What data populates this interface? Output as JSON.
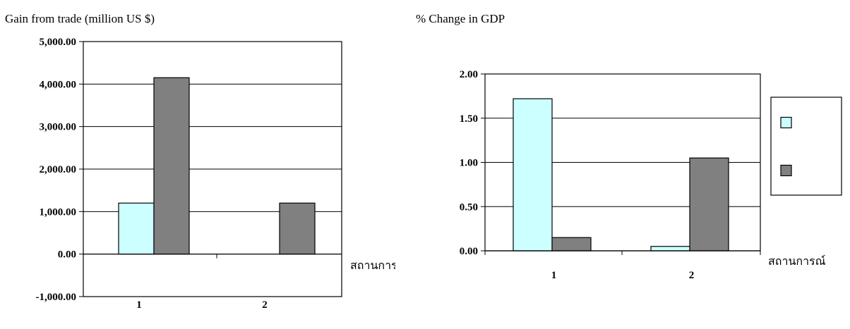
{
  "chart_data": [
    {
      "type": "bar",
      "title": "Gain from trade (million US $)",
      "xlabel": "สถานการณ์",
      "categories": [
        "1",
        "2"
      ],
      "series": [
        {
          "color": "#ccffff",
          "values": [
            1200,
            0
          ]
        },
        {
          "color": "#808080",
          "values": [
            4150,
            1200
          ]
        }
      ],
      "ylim": [
        -1000,
        5000
      ],
      "yticks": [
        "-1,000.00",
        "0.00",
        "1,000.00",
        "2,000.00",
        "3,000.00",
        "4,000.00",
        "5,000.00"
      ],
      "grid": true,
      "legend": "none"
    },
    {
      "type": "bar",
      "title": "% Change in GDP",
      "xlabel": "สถานการณ์",
      "categories": [
        "1",
        "2"
      ],
      "series": [
        {
          "color": "#ccffff",
          "values": [
            1.72,
            0.05
          ]
        },
        {
          "color": "#808080",
          "values": [
            0.15,
            1.05
          ]
        }
      ],
      "ylim": [
        0,
        2
      ],
      "yticks": [
        "0.00",
        "0.50",
        "1.00",
        "1.50",
        "2.00"
      ],
      "grid": true,
      "legend": "right"
    }
  ]
}
